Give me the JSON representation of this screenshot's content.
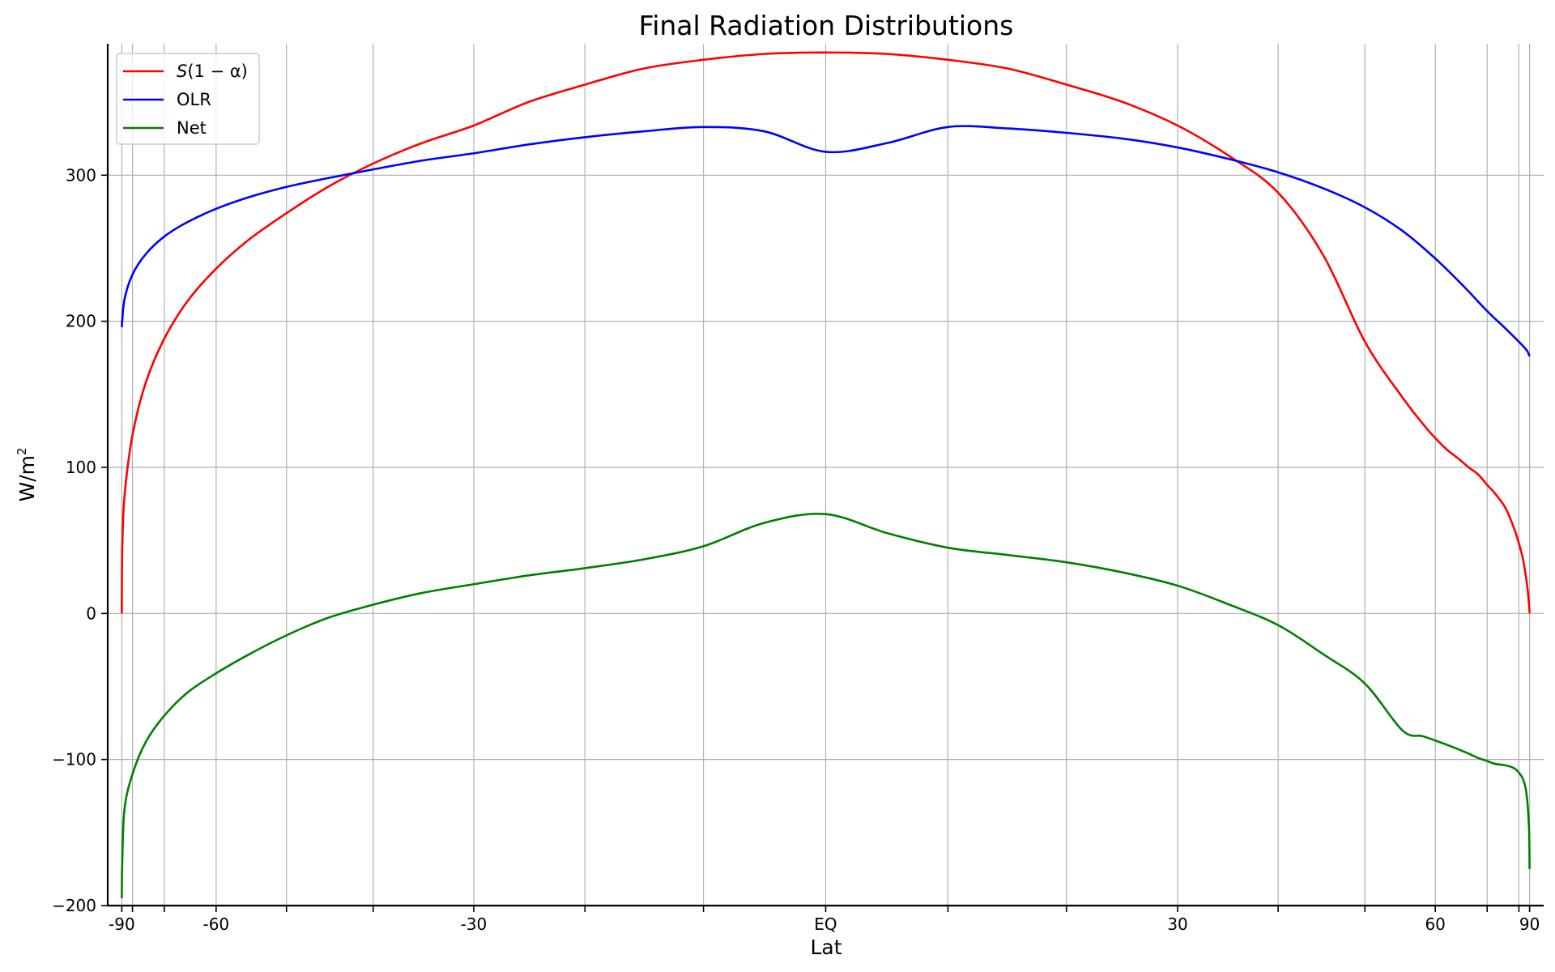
{
  "chart_data": {
    "type": "line",
    "title": "Final Radiation Distributions",
    "xlabel": "Lat",
    "ylabel_base": "W/m",
    "ylabel_sup": "2",
    "xlim": [
      -1.02,
      1.02
    ],
    "ylim": [
      -200,
      390
    ],
    "x_scale": "sine of latitude",
    "grid": true,
    "legend_position": "top-left",
    "x_ticks": [
      {
        "lat": -90,
        "label": "-90"
      },
      {
        "lat": -60,
        "label": "-60"
      },
      {
        "lat": -30,
        "label": "-30"
      },
      {
        "lat": 0,
        "label": "EQ"
      },
      {
        "lat": 30,
        "label": "30"
      },
      {
        "lat": 60,
        "label": "60"
      },
      {
        "lat": 90,
        "label": "90"
      }
    ],
    "x_minor_ticks": [
      -80,
      -70,
      -50,
      -40,
      -20,
      -10,
      10,
      20,
      40,
      50,
      70,
      80
    ],
    "y_ticks": [
      {
        "value": -200,
        "label": "−200"
      },
      {
        "value": -100,
        "label": "−100"
      },
      {
        "value": 0,
        "label": "0"
      },
      {
        "value": 100,
        "label": "100"
      },
      {
        "value": 200,
        "label": "200"
      },
      {
        "value": 300,
        "label": "300"
      }
    ],
    "series": [
      {
        "name_italic": "S",
        "name_rest": "(1 − α)",
        "color": "#ff0000",
        "x": [
          -90,
          -88,
          -85,
          -80,
          -75,
          -70,
          -65,
          -60,
          -55,
          -50,
          -45,
          -40,
          -35,
          -30,
          -25,
          -20,
          -15,
          -10,
          -5,
          0,
          5,
          10,
          15,
          20,
          25,
          30,
          35,
          40,
          45,
          50,
          55,
          58,
          60,
          62,
          64,
          66,
          68,
          70,
          72,
          75,
          78,
          80,
          82,
          84,
          86,
          88,
          90
        ],
        "y": [
          0,
          43,
          80,
          122,
          158,
          188,
          214,
          236,
          256,
          274,
          292,
          308,
          322,
          334,
          350,
          362,
          373,
          379,
          383,
          384,
          383,
          379,
          373,
          362,
          350,
          334,
          313,
          288,
          245,
          186,
          148,
          130,
          120,
          112,
          106,
          100,
          95,
          88,
          82,
          72,
          58,
          48,
          38,
          26,
          15,
          5,
          0
        ]
      },
      {
        "name": "OLR",
        "color": "#0000ff",
        "x": [
          -90,
          -85,
          -80,
          -75,
          -70,
          -65,
          -60,
          -55,
          -50,
          -45,
          -40,
          -35,
          -30,
          -25,
          -20,
          -15,
          -10,
          -5,
          0,
          5,
          10,
          15,
          20,
          25,
          30,
          35,
          40,
          45,
          50,
          55,
          60,
          65,
          70,
          75,
          80,
          85,
          90
        ],
        "y": [
          196,
          215,
          232,
          246,
          258,
          268,
          277,
          285,
          292,
          298,
          304,
          310,
          315,
          321,
          326,
          330,
          333,
          330,
          316,
          322,
          333,
          332,
          329,
          325,
          319,
          311,
          302,
          291,
          278,
          262,
          243,
          224,
          207,
          195,
          186,
          180,
          176
        ]
      },
      {
        "name": "Net",
        "color": "#008000",
        "x": [
          -90,
          -88,
          -85,
          -80,
          -75,
          -70,
          -65,
          -60,
          -55,
          -50,
          -45,
          -40,
          -35,
          -30,
          -25,
          -20,
          -15,
          -10,
          -5,
          0,
          5,
          10,
          15,
          20,
          25,
          30,
          35,
          40,
          45,
          50,
          55,
          58,
          60,
          62,
          64,
          66,
          68,
          70,
          72,
          75,
          78,
          80,
          82,
          84,
          86,
          88,
          90
        ],
        "y": [
          -195,
          -171,
          -134,
          -110,
          -88,
          -70,
          -54,
          -41,
          -28,
          -15,
          -3,
          6,
          14,
          20,
          26,
          31,
          37,
          46,
          62,
          68,
          55,
          45,
          40,
          35,
          28,
          19,
          6,
          -8,
          -28,
          -48,
          -80,
          -84,
          -87,
          -90,
          -93,
          -96,
          -99,
          -101,
          -103,
          -104,
          -106,
          -109,
          -113,
          -120,
          -133,
          -150,
          -175
        ]
      }
    ]
  }
}
